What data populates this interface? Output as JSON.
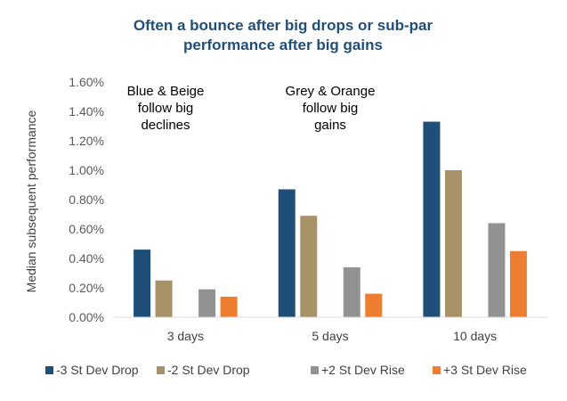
{
  "chart_data": {
    "type": "bar",
    "title_lines": [
      "Often a bounce after big drops or sub-par",
      "performance after big gains"
    ],
    "ylabel": "Median subsequent performance",
    "xlabel": "",
    "ylim": [
      0,
      0.016
    ],
    "yticks": [
      0,
      0.002,
      0.004,
      0.006,
      0.008,
      0.01,
      0.012,
      0.014,
      0.016
    ],
    "ytick_labels": [
      "0.00%",
      "0.20%",
      "0.40%",
      "0.60%",
      "0.80%",
      "1.00%",
      "1.20%",
      "1.40%",
      "1.60%"
    ],
    "grid": false,
    "legend_position": "bottom",
    "categories": [
      "3 days",
      "5 days",
      "10 days"
    ],
    "series": [
      {
        "name": "-3 St Dev Drop",
        "color": "#1f4e79",
        "values": [
          0.0046,
          0.0087,
          0.0133
        ]
      },
      {
        "name": "-2 St Dev Drop",
        "color": "#a69266",
        "values": [
          0.0025,
          0.0069,
          0.01
        ]
      },
      {
        "name": "+2 St Dev Rise",
        "color": "#929292",
        "values": [
          0.0019,
          0.0034,
          0.0064
        ]
      },
      {
        "name": "+3 St Dev Rise",
        "color": "#ed7d31",
        "values": [
          0.0014,
          0.0016,
          0.0045
        ]
      }
    ],
    "annotations": [
      {
        "lines": [
          "Blue & Beige",
          "follow big",
          "declines"
        ]
      },
      {
        "lines": [
          "Grey & Orange",
          "follow big",
          "gains"
        ]
      }
    ]
  }
}
